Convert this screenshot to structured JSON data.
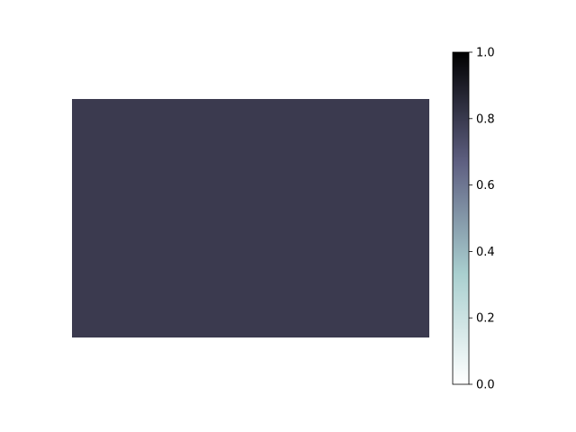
{
  "chart_data": {
    "type": "heatmap",
    "values": [
      [
        0.75
      ]
    ],
    "x_axis": "hidden",
    "y_axis": "hidden",
    "colormap": "bone_r",
    "colorbar": {
      "range": [
        0,
        1
      ],
      "ticks": [
        "0.0",
        "0.2",
        "0.4",
        "0.6",
        "0.8",
        "1.0"
      ],
      "placement": "right",
      "stops": [
        "#ffffff",
        "#a9cfcf",
        "#5f6082",
        "#000000"
      ]
    },
    "cell_color": "#3b3a4f"
  }
}
